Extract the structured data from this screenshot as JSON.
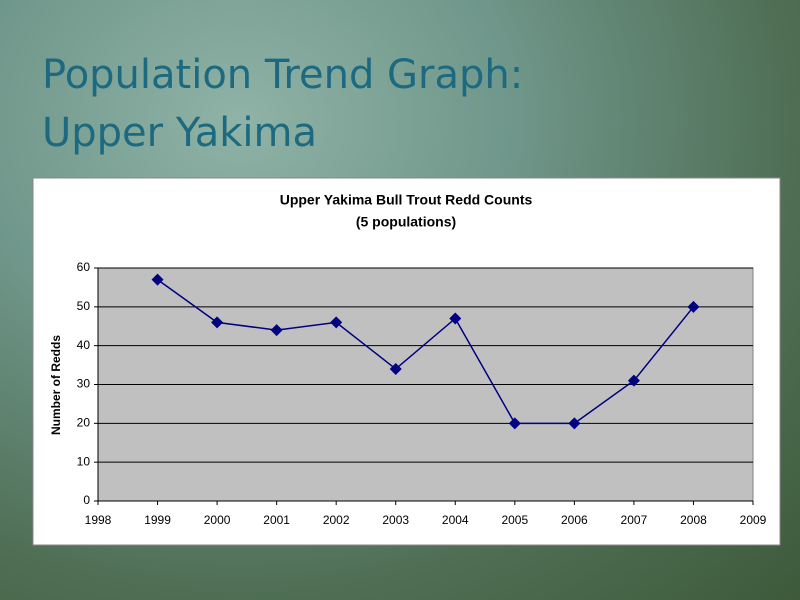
{
  "slide": {
    "title_lines": [
      "Population Trend Graph:",
      "Upper Yakima"
    ]
  },
  "chart_data": {
    "type": "line",
    "title": "Upper Yakima Bull Trout Redd Counts",
    "subtitle": "(5 populations)",
    "y_label": "Number of Redds",
    "x": [
      1999,
      2000,
      2001,
      2002,
      2003,
      2004,
      2005,
      2006,
      2007,
      2008
    ],
    "series": [
      {
        "name": "Redd Counts",
        "color": "#000080",
        "values": [
          57,
          46,
          44,
          46,
          34,
          47,
          20,
          20,
          31,
          50
        ]
      }
    ],
    "xlim": [
      1998,
      2009
    ],
    "xticks": [
      1998,
      1999,
      2000,
      2001,
      2002,
      2003,
      2004,
      2005,
      2006,
      2007,
      2008,
      2009
    ],
    "ylim": [
      0,
      60
    ],
    "yticks": [
      0,
      10,
      20,
      30,
      40,
      50,
      60
    ],
    "grid": true,
    "plot_background": "#c0c0c0"
  }
}
